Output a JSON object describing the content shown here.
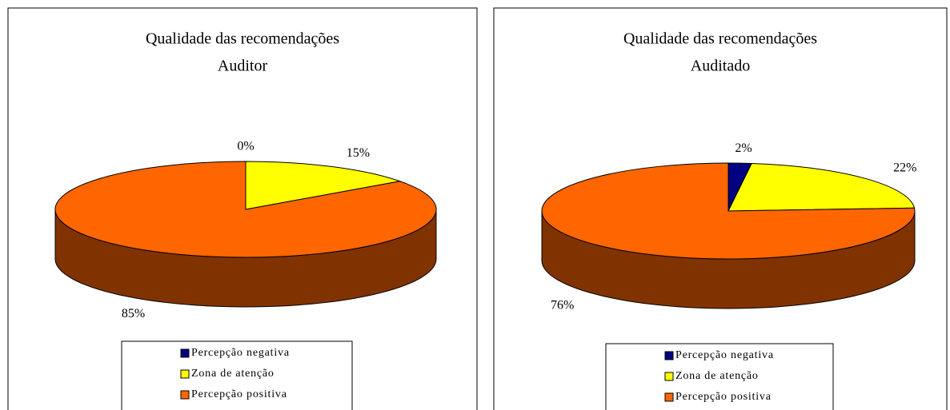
{
  "chart_data": [
    {
      "type": "pie",
      "title": "Qualidade das recomendações",
      "subtitle": "Auditor",
      "categories": [
        "Percepção negativa",
        "Zona de atenção",
        "Percepção positiva"
      ],
      "values": [
        0,
        15,
        85
      ],
      "value_labels": [
        "0%",
        "15%",
        "85%"
      ],
      "colors": [
        "#000080",
        "#ffff00",
        "#ff6600"
      ],
      "legend": "bottom"
    },
    {
      "type": "pie",
      "title": "Qualidade das recomendações",
      "subtitle": "Auditado",
      "categories": [
        "Percepção negativa",
        "Zona de atenção",
        "Percepção positiva"
      ],
      "values": [
        2,
        22,
        76
      ],
      "value_labels": [
        "2%",
        "22%",
        "76%"
      ],
      "colors": [
        "#000080",
        "#ffff00",
        "#ff6600"
      ],
      "legend": "bottom"
    }
  ]
}
